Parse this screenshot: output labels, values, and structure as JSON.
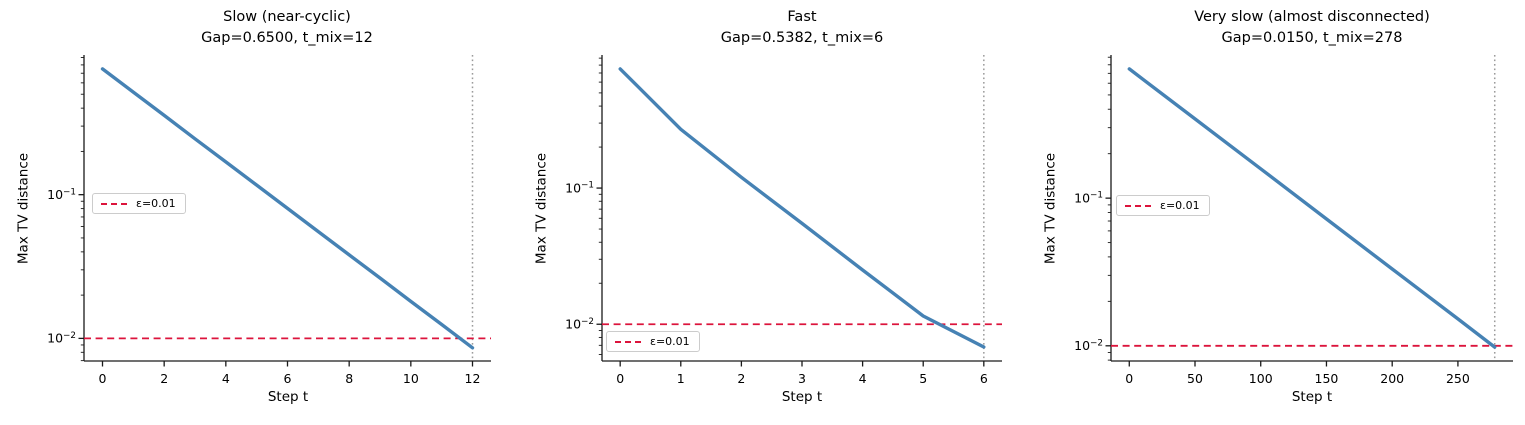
{
  "figure": {
    "background": "#ffffff",
    "colors": {
      "series_line": "#4682B4",
      "epsilon_line": "#DC143C",
      "tmix_vline": "#9b9b9b",
      "spine": "#1a1a1a",
      "text": "#000000",
      "legend_border": "#cccccc"
    }
  },
  "chart_data": [
    {
      "type": "line",
      "title": "Slow (near-cyclic)",
      "subtitle": "Gap=0.6500, t_mix=12",
      "gap": 0.65,
      "t_mix": 12,
      "epsilon": 0.01,
      "xlabel": "Step t",
      "ylabel": "Max TV distance",
      "legend_label": "ε=0.01",
      "yscale": "log",
      "xlim": [
        -0.6,
        12.6
      ],
      "ylim": [
        0.00696,
        0.9375
      ],
      "xticks": [
        0,
        2,
        4,
        6,
        8,
        10,
        12
      ],
      "yticks": [
        0.1,
        0.01
      ],
      "series": [
        {
          "name": "Max TV distance",
          "x": [
            0,
            1,
            2,
            3,
            4,
            5,
            6,
            7,
            8,
            9,
            10,
            11,
            12
          ],
          "y": [
            0.75,
            0.517,
            0.356,
            0.245,
            0.169,
            0.1165,
            0.0802,
            0.0553,
            0.0381,
            0.0263,
            0.0181,
            0.0125,
            0.0086
          ]
        }
      ],
      "epsilon_line_y": 0.01,
      "vline_x": 12,
      "legend_position": "center left"
    },
    {
      "type": "line",
      "title": "Fast",
      "subtitle": "Gap=0.5382, t_mix=6",
      "gap": 0.5382,
      "t_mix": 6,
      "epsilon": 0.01,
      "xlabel": "Step t",
      "ylabel": "Max TV distance",
      "legend_label": "ε=0.01",
      "yscale": "log",
      "xlim": [
        -0.3,
        6.3
      ],
      "ylim": [
        0.00537,
        0.949
      ],
      "xticks": [
        0,
        1,
        2,
        3,
        4,
        5,
        6
      ],
      "yticks": [
        0.1,
        0.01
      ],
      "series": [
        {
          "name": "Max TV distance",
          "x": [
            0,
            1,
            2,
            3,
            4,
            5,
            6
          ],
          "y": [
            0.75,
            0.27,
            0.12,
            0.055,
            0.025,
            0.0115,
            0.0068
          ]
        }
      ],
      "epsilon_line_y": 0.01,
      "vline_x": 6,
      "legend_position": "lower left"
    },
    {
      "type": "line",
      "title": "Very slow (almost disconnected)",
      "subtitle": "Gap=0.0150, t_mix=278",
      "gap": 0.015,
      "t_mix": 278,
      "epsilon": 0.01,
      "xlabel": "Step t",
      "ylabel": "Max TV distance",
      "legend_label": "ε=0.01",
      "yscale": "log",
      "xlim": [
        -13.9,
        291.9
      ],
      "ylim": [
        0.00789,
        0.9318
      ],
      "xticks": [
        0,
        50,
        100,
        150,
        200,
        250
      ],
      "yticks": [
        0.1,
        0.01
      ],
      "series": [
        {
          "name": "Max TV distance",
          "x": [
            0,
            50,
            100,
            150,
            200,
            250,
            278
          ],
          "y": [
            0.75,
            0.344,
            0.158,
            0.0722,
            0.0331,
            0.0152,
            0.0098
          ]
        }
      ],
      "epsilon_line_y": 0.01,
      "vline_x": 278,
      "legend_position": "center left"
    }
  ]
}
